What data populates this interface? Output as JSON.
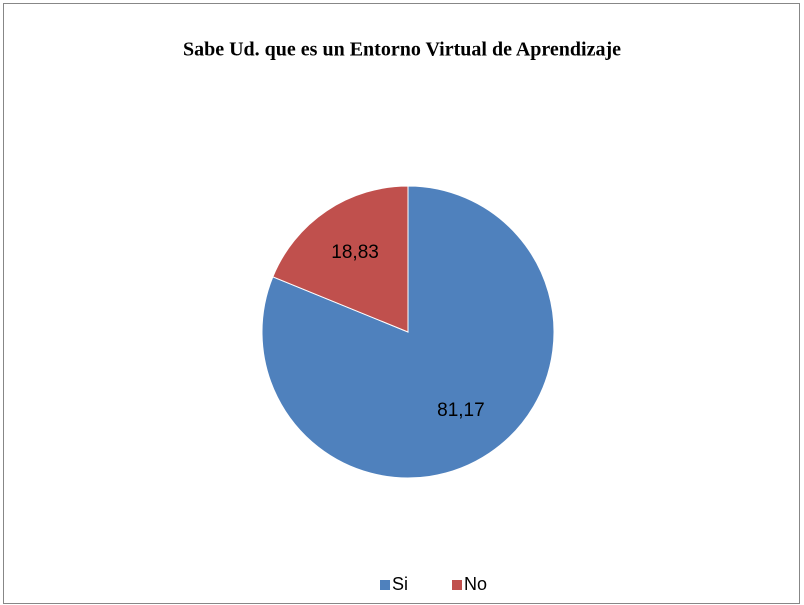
{
  "chart_data": {
    "type": "pie",
    "title": "Sabe Ud. que es un Entorno Virtual de Aprendizaje",
    "categories": [
      "Si",
      "No"
    ],
    "values": [
      81.17,
      18.83
    ],
    "value_labels": [
      "81,17",
      "18,83"
    ],
    "colors": [
      "#4f81bd",
      "#c0504d"
    ],
    "legend": "bottom"
  }
}
